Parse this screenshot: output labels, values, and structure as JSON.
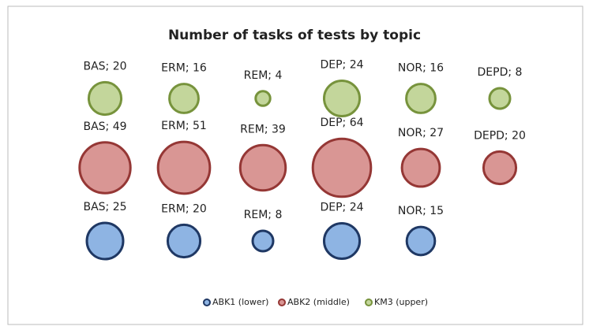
{
  "chart_data": {
    "type": "bubble",
    "title": "Number of tasks of tests by topic",
    "categories": [
      "BAS",
      "ERM",
      "REM",
      "DEP",
      "NOR",
      "DEPD"
    ],
    "series": [
      {
        "name": "ABK1 (lower)",
        "color": "#8eb4e3",
        "stroke": "#1f3864",
        "values": [
          25,
          20,
          8,
          24,
          15,
          null
        ],
        "value_labels": [
          "BAS; 25",
          "ERM; 20",
          "REM; 8",
          "DEP; 24",
          "NOR; 15",
          null
        ]
      },
      {
        "name": "ABK2 (middle)",
        "color": "#d99694",
        "stroke": "#953735",
        "values": [
          49,
          51,
          39,
          64,
          27,
          20
        ],
        "value_labels": [
          "BAS; 49",
          "ERM; 51",
          "REM; 39",
          "DEP; 64",
          "NOR; 27",
          "DEPD; 20"
        ]
      },
      {
        "name": "KM3 (upper)",
        "color": "#c3d69b",
        "stroke": "#77933c",
        "values": [
          20,
          16,
          4,
          24,
          16,
          8
        ],
        "value_labels": [
          "BAS; 20",
          "ERM; 16",
          "REM; 4",
          "DEP; 24",
          "NOR; 16",
          "DEPD; 8"
        ]
      }
    ],
    "legend": "bottom"
  }
}
